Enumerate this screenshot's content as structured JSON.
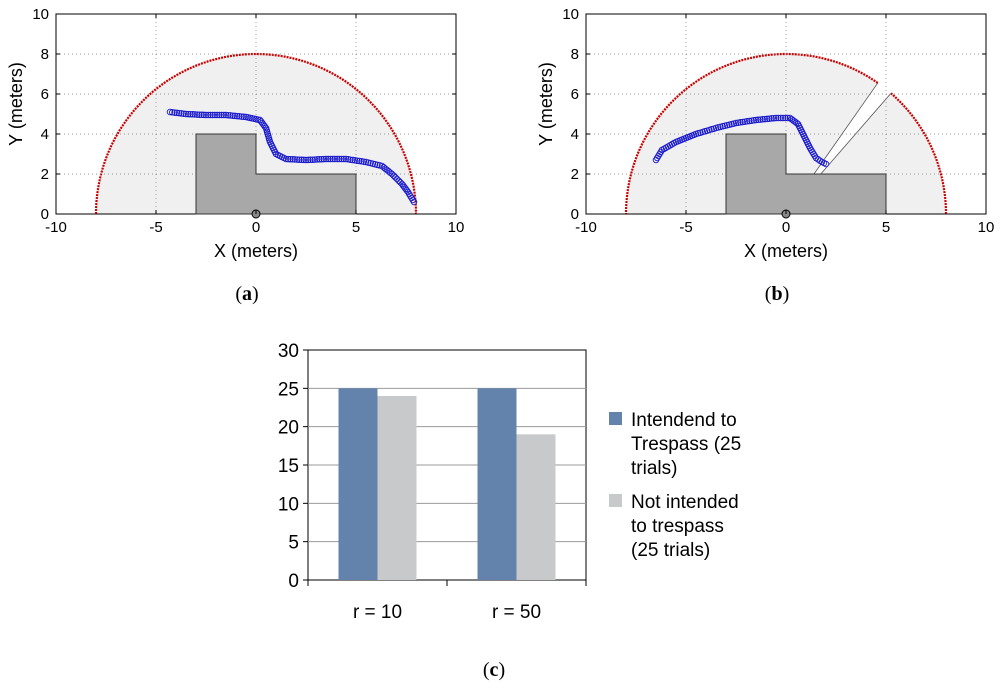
{
  "chart_data": [
    {
      "type": "scatter",
      "panel": "a",
      "caption_letter": "a",
      "xlabel": "X (meters)",
      "ylabel": "Y (meters)",
      "xlim": [
        -10,
        10
      ],
      "ylim": [
        0,
        10
      ],
      "xticks": [
        "-10",
        "-5",
        "0",
        "5",
        "10"
      ],
      "yticks": [
        "0",
        "2",
        "4",
        "6",
        "8",
        "10"
      ],
      "grid": true,
      "boundary_radius": 8,
      "colors": {
        "boundary": "#cc0000",
        "track": "#1a1acc",
        "region": "#f0f0f0",
        "building": "#a8a8a8"
      },
      "building": [
        [
          -3,
          0
        ],
        [
          -3,
          4
        ],
        [
          0,
          4
        ],
        [
          0,
          2
        ],
        [
          5,
          2
        ],
        [
          5,
          0
        ]
      ],
      "sensor": [
        0,
        0
      ],
      "track": [
        [
          -4.3,
          5.1
        ],
        [
          -3.5,
          5.0
        ],
        [
          -2.5,
          4.95
        ],
        [
          -1.5,
          4.95
        ],
        [
          -0.5,
          4.85
        ],
        [
          0.2,
          4.7
        ],
        [
          0.5,
          4.3
        ],
        [
          0.7,
          3.6
        ],
        [
          1.0,
          3.0
        ],
        [
          1.5,
          2.75
        ],
        [
          2.5,
          2.7
        ],
        [
          3.5,
          2.75
        ],
        [
          4.5,
          2.75
        ],
        [
          5.5,
          2.6
        ],
        [
          6.3,
          2.4
        ],
        [
          6.8,
          2.0
        ],
        [
          7.3,
          1.5
        ],
        [
          7.6,
          1.1
        ],
        [
          7.9,
          0.6
        ]
      ]
    },
    {
      "type": "scatter",
      "panel": "b",
      "caption_letter": "b",
      "xlabel": "X (meters)",
      "ylabel": "Y (meters)",
      "xlim": [
        -10,
        10
      ],
      "ylim": [
        0,
        10
      ],
      "xticks": [
        "-10",
        "-5",
        "0",
        "5",
        "10"
      ],
      "yticks": [
        "0",
        "2",
        "4",
        "6",
        "8",
        "10"
      ],
      "grid": true,
      "boundary_radius": 8,
      "gap_angles_deg": [
        49,
        55
      ],
      "colors": {
        "boundary": "#cc0000",
        "track": "#1a1acc",
        "region": "#f0f0f0",
        "building": "#a8a8a8"
      },
      "building": [
        [
          -3,
          0
        ],
        [
          -3,
          4
        ],
        [
          0,
          4
        ],
        [
          0,
          2
        ],
        [
          5,
          2
        ],
        [
          5,
          0
        ]
      ],
      "sensor": [
        0,
        0
      ],
      "track": [
        [
          -6.5,
          2.7
        ],
        [
          -6.2,
          3.2
        ],
        [
          -5.5,
          3.6
        ],
        [
          -4.5,
          4.0
        ],
        [
          -3.5,
          4.3
        ],
        [
          -2.5,
          4.55
        ],
        [
          -1.5,
          4.7
        ],
        [
          -0.5,
          4.8
        ],
        [
          0.2,
          4.8
        ],
        [
          0.6,
          4.5
        ],
        [
          0.9,
          3.9
        ],
        [
          1.2,
          3.3
        ],
        [
          1.5,
          2.8
        ],
        [
          1.8,
          2.6
        ],
        [
          2.0,
          2.5
        ]
      ]
    },
    {
      "type": "bar",
      "panel": "c",
      "caption_letter": "c",
      "categories": [
        "r = 10",
        "r = 50"
      ],
      "ylim": [
        0,
        30
      ],
      "yticks": [
        "0",
        "5",
        "10",
        "15",
        "20",
        "25",
        "30"
      ],
      "grid": true,
      "legend_position": "right",
      "series": [
        {
          "name": "Intendend to Trespass (25 trials)",
          "legend_lines": [
            "Intendend to",
            "Trespass (25",
            "trials)"
          ],
          "values": [
            25,
            25
          ],
          "color": "#6383ad"
        },
        {
          "name": "Not intended to trespass (25 trials)",
          "legend_lines": [
            "Not intended",
            "to trespass",
            "(25 trials)"
          ],
          "values": [
            24,
            19
          ],
          "color": "#c8c9cb"
        }
      ]
    }
  ]
}
